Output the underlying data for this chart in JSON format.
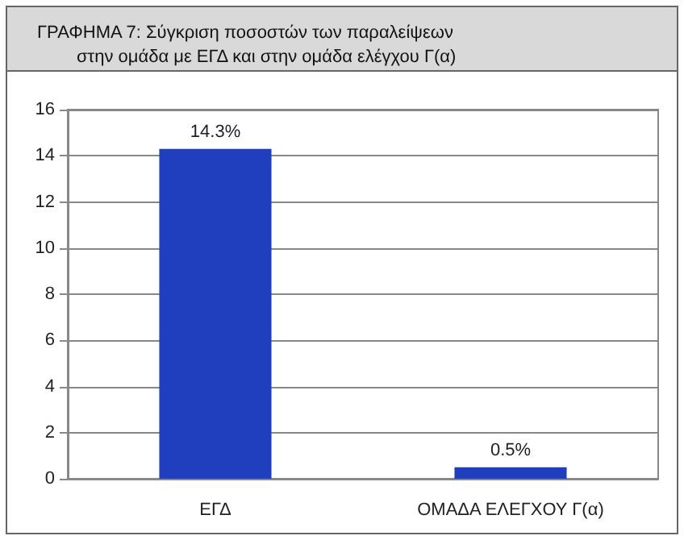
{
  "chart_data": {
    "type": "bar",
    "title": "ΓΡΑΦΗΜΑ 7: Σύγκριση ποσοστών των παραλείψεων\n        στην ομάδα με ΕΓΔ και στην ομάδα ελέγχου Γ(α)",
    "categories": [
      "ΕΓΔ",
      "ΟΜΑΔΑ ΕΛΕΓΧΟΥ Γ(α)"
    ],
    "values": [
      14.3,
      0.5
    ],
    "value_labels": [
      "14.3%",
      "0.5%"
    ],
    "color": "#1f3fbf",
    "ylim": [
      0,
      16
    ],
    "yticks": [
      0,
      2,
      4,
      6,
      8,
      10,
      12,
      14,
      16
    ],
    "grid": "y"
  }
}
